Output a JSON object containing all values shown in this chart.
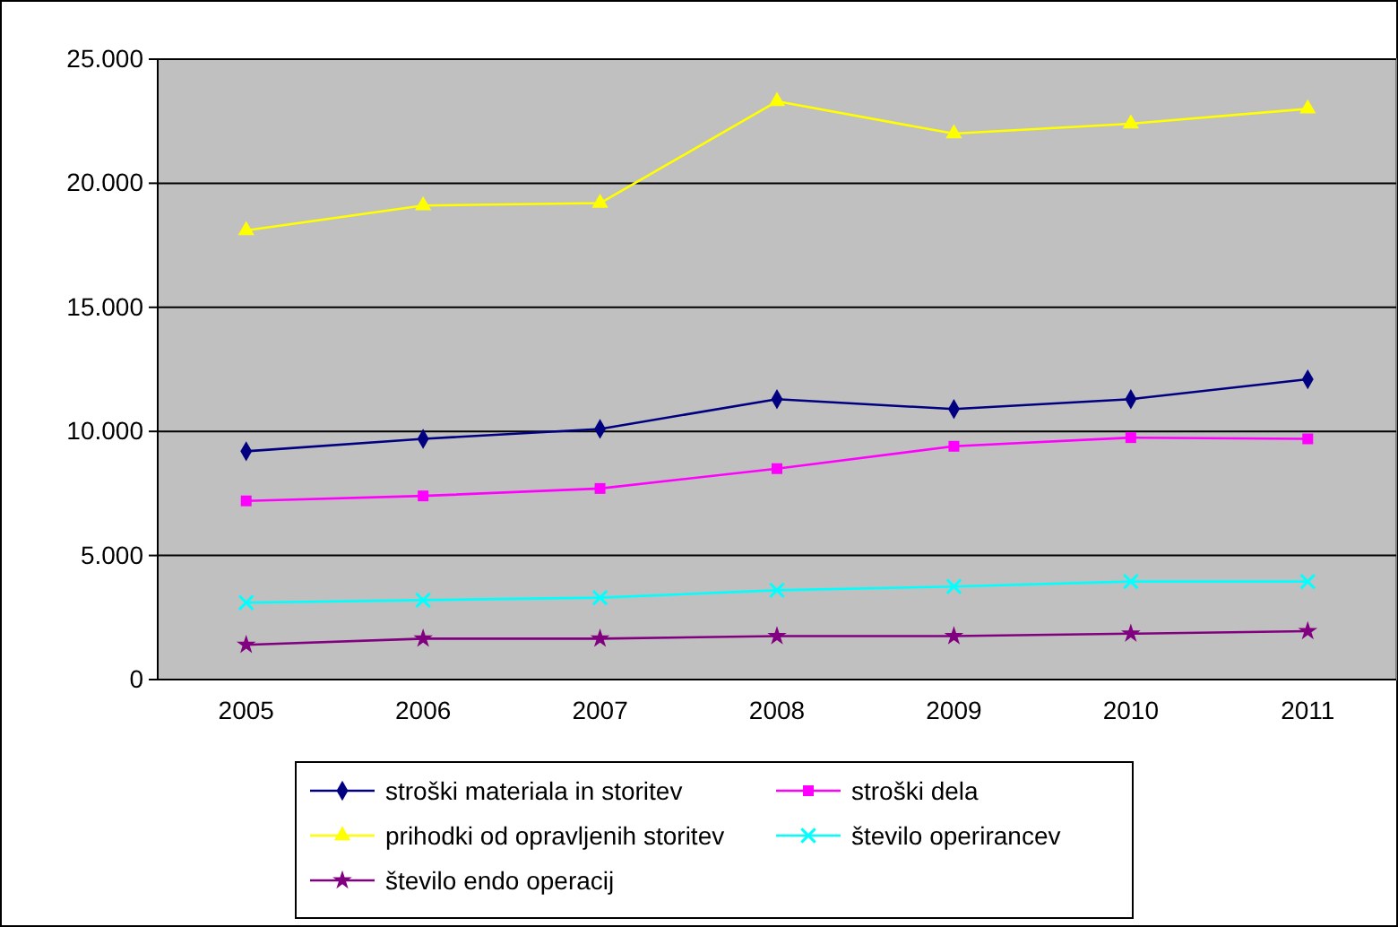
{
  "chart_data": {
    "type": "line",
    "categories": [
      "2005",
      "2006",
      "2007",
      "2008",
      "2009",
      "2010",
      "2011"
    ],
    "ylim": [
      0,
      25000
    ],
    "yticks": [
      {
        "value": 0,
        "label": "0"
      },
      {
        "value": 5000,
        "label": "5.000"
      },
      {
        "value": 10000,
        "label": "10.000"
      },
      {
        "value": 15000,
        "label": "15.000"
      },
      {
        "value": 20000,
        "label": "20.000"
      },
      {
        "value": 25000,
        "label": "25.000"
      }
    ],
    "grid": "y",
    "legend": "bottom",
    "series": [
      {
        "name": "stroški materiala in storitev",
        "color": "#000080",
        "marker": "diamond",
        "values": [
          9200,
          9700,
          10100,
          11300,
          10900,
          11300,
          12100
        ]
      },
      {
        "name": "stroški dela",
        "color": "#ff00ff",
        "marker": "square",
        "values": [
          7200,
          7400,
          7700,
          8500,
          9400,
          9750,
          9700
        ]
      },
      {
        "name": "prihodki od opravljenih storitev",
        "color": "#ffff00",
        "marker": "triangle",
        "values": [
          18100,
          19100,
          19200,
          23300,
          22000,
          22400,
          23000
        ]
      },
      {
        "name": "število operirancev",
        "color": "#00ffff",
        "marker": "cross",
        "values": [
          3100,
          3200,
          3300,
          3600,
          3750,
          3950,
          3950
        ]
      },
      {
        "name": "število endo operacij",
        "color": "#800080",
        "marker": "star",
        "values": [
          1400,
          1650,
          1650,
          1750,
          1750,
          1850,
          1950
        ]
      }
    ]
  }
}
